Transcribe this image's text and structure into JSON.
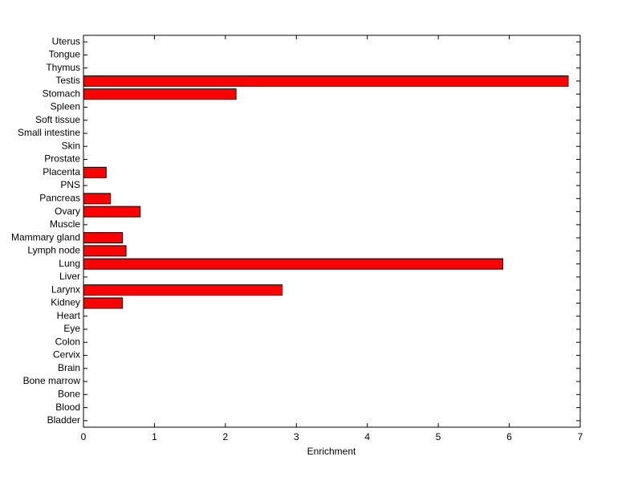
{
  "chart_data": {
    "type": "barh",
    "xlabel": "Enrichment",
    "categories": [
      "Bladder",
      "Blood",
      "Bone",
      "Bone marrow",
      "Brain",
      "Cervix",
      "Colon",
      "Eye",
      "Heart",
      "Kidney",
      "Larynx",
      "Liver",
      "Lung",
      "Lymph node",
      "Mammary gland",
      "Muscle",
      "Ovary",
      "Pancreas",
      "PNS",
      "Placenta",
      "Prostate",
      "Skin",
      "Small intestine",
      "Soft tissue",
      "Spleen",
      "Stomach",
      "Testis",
      "Thymus",
      "Tongue",
      "Uterus"
    ],
    "values": [
      0,
      0,
      0,
      0,
      0,
      0,
      0,
      0,
      0,
      0.55,
      2.8,
      0,
      5.91,
      0.6,
      0.55,
      0,
      0.8,
      0.38,
      0,
      0.32,
      0,
      0,
      0,
      0,
      0,
      2.15,
      6.83,
      0,
      0,
      0
    ],
    "color": "#ff0000",
    "xlim": [
      0,
      7
    ],
    "xticks": [
      0,
      1,
      2,
      3,
      4,
      5,
      6,
      7
    ]
  }
}
